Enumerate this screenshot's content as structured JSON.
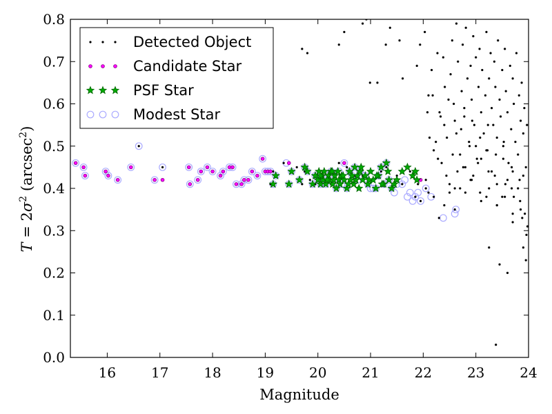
{
  "chart_data": {
    "type": "scatter",
    "title": "",
    "xlabel": "Magnitude",
    "ylabel": {
      "prefix": "T",
      "eq": " = 2",
      "sigma": "σ",
      "sup": "2",
      "units": " (arcsec",
      "units_sup": "2",
      "close": ")"
    },
    "xlim": [
      15.3,
      24
    ],
    "ylim": [
      0.0,
      0.8
    ],
    "xticks": [
      "16",
      "17",
      "18",
      "19",
      "20",
      "21",
      "22",
      "23",
      "24"
    ],
    "yticks": [
      "0.0",
      "0.1",
      "0.2",
      "0.3",
      "0.4",
      "0.5",
      "0.6",
      "0.7",
      "0.8"
    ],
    "grid": false,
    "legend_position": "top-left",
    "series": [
      {
        "name": "Detected Object",
        "marker": "dot",
        "color": "#000000",
        "x": [
          15.4,
          15.55,
          15.58,
          15.97,
          16.02,
          16.2,
          16.45,
          16.6,
          16.9,
          17.05,
          17.55,
          17.57,
          17.72,
          17.78,
          17.9,
          18.0,
          18.15,
          18.2,
          18.32,
          18.38,
          18.45,
          18.55,
          18.6,
          18.68,
          18.75,
          18.85,
          18.95,
          19.0,
          19.1,
          19.15,
          19.35,
          19.45,
          19.6,
          19.7,
          19.75,
          19.85,
          19.95,
          20.05,
          20.15,
          20.25,
          20.4,
          20.55,
          20.7,
          20.85,
          21.0,
          21.1,
          21.2,
          21.3,
          21.4,
          21.5,
          21.6,
          21.75,
          21.85,
          21.9,
          21.95,
          22.05,
          22.1,
          22.2,
          22.3,
          22.4,
          22.5,
          22.6,
          22.7,
          22.8,
          22.9,
          23.0,
          23.1,
          23.2,
          23.3,
          23.4,
          23.5,
          23.6,
          23.7,
          23.8,
          23.9,
          19.7,
          19.8,
          20.4,
          20.5,
          20.85,
          20.92,
          20.99,
          21.13,
          21.29,
          21.37,
          21.55,
          21.61,
          21.88,
          21.94,
          22.03,
          22.1,
          22.16,
          22.27,
          22.31,
          22.38,
          22.41,
          22.45,
          22.52,
          22.55,
          22.58,
          22.6,
          22.63,
          22.66,
          22.7,
          22.73,
          22.75,
          22.78,
          22.81,
          22.84,
          22.87,
          22.9,
          22.92,
          22.95,
          22.97,
          23.0,
          23.02,
          23.05,
          23.07,
          23.1,
          23.12,
          23.15,
          23.18,
          23.2,
          23.22,
          23.25,
          23.28,
          23.3,
          23.33,
          23.35,
          23.37,
          23.4,
          23.42,
          23.45,
          23.47,
          23.5,
          23.52,
          23.55,
          23.57,
          23.6,
          23.62,
          23.65,
          23.67,
          23.7,
          23.72,
          23.75,
          23.77,
          23.8,
          23.82,
          23.85,
          23.87,
          23.9,
          23.92,
          23.95,
          23.97,
          22.05,
          22.2,
          22.35,
          22.5,
          22.65,
          22.8,
          22.95,
          23.1,
          23.25,
          23.4,
          23.55,
          23.7,
          23.85,
          23.98,
          22.12,
          22.28,
          22.44,
          22.6,
          22.76,
          22.92,
          23.08,
          23.24,
          23.4,
          23.56,
          23.72,
          23.88,
          22.08,
          22.24,
          22.4,
          22.56,
          22.72,
          22.88,
          23.04,
          23.2,
          23.36,
          23.52,
          23.68,
          23.84,
          23.96,
          22.18,
          22.33,
          22.48,
          22.63,
          22.78,
          22.93,
          23.08,
          23.23,
          23.38,
          23.53,
          23.68,
          23.83,
          23.93,
          23.38,
          23.45,
          23.6,
          23.9,
          23.95,
          23.25,
          23.7
        ],
        "y": [
          0.46,
          0.45,
          0.43,
          0.44,
          0.43,
          0.42,
          0.45,
          0.5,
          0.42,
          0.45,
          0.45,
          0.41,
          0.42,
          0.44,
          0.45,
          0.44,
          0.43,
          0.44,
          0.45,
          0.45,
          0.41,
          0.41,
          0.42,
          0.42,
          0.44,
          0.43,
          0.47,
          0.44,
          0.41,
          0.44,
          0.46,
          0.41,
          0.45,
          0.41,
          0.44,
          0.42,
          0.41,
          0.43,
          0.42,
          0.41,
          0.46,
          0.45,
          0.43,
          0.43,
          0.42,
          0.4,
          0.44,
          0.45,
          0.4,
          0.43,
          0.41,
          0.44,
          0.38,
          0.41,
          0.37,
          0.4,
          0.39,
          0.38,
          0.33,
          0.36,
          0.39,
          0.35,
          0.4,
          0.45,
          0.42,
          0.5,
          0.47,
          0.38,
          0.44,
          0.41,
          0.38,
          0.42,
          0.44,
          0.4,
          0.43,
          0.73,
          0.72,
          0.74,
          0.77,
          0.79,
          0.8,
          0.65,
          0.65,
          0.74,
          0.78,
          0.75,
          0.66,
          0.69,
          0.74,
          0.77,
          0.62,
          0.68,
          0.72,
          0.58,
          0.71,
          0.64,
          0.52,
          0.67,
          0.75,
          0.6,
          0.56,
          0.79,
          0.7,
          0.48,
          0.63,
          0.74,
          0.57,
          0.78,
          0.66,
          0.51,
          0.69,
          0.61,
          0.76,
          0.55,
          0.71,
          0.47,
          0.64,
          0.73,
          0.58,
          0.68,
          0.53,
          0.62,
          0.77,
          0.49,
          0.66,
          0.72,
          0.59,
          0.55,
          0.7,
          0.64,
          0.52,
          0.75,
          0.61,
          0.57,
          0.68,
          0.5,
          0.73,
          0.63,
          0.58,
          0.46,
          0.69,
          0.54,
          0.66,
          0.6,
          0.51,
          0.72,
          0.48,
          0.62,
          0.56,
          0.65,
          0.53,
          0.59,
          0.45,
          0.55,
          0.42,
          0.49,
          0.46,
          0.41,
          0.44,
          0.39,
          0.43,
          0.37,
          0.4,
          0.36,
          0.38,
          0.34,
          0.35,
          0.31,
          0.52,
          0.47,
          0.43,
          0.4,
          0.45,
          0.42,
          0.39,
          0.44,
          0.36,
          0.41,
          0.38,
          0.33,
          0.58,
          0.51,
          0.55,
          0.48,
          0.54,
          0.5,
          0.46,
          0.49,
          0.43,
          0.47,
          0.4,
          0.37,
          0.29,
          0.62,
          0.57,
          0.61,
          0.53,
          0.59,
          0.56,
          0.52,
          0.55,
          0.48,
          0.51,
          0.45,
          0.42,
          0.34,
          0.03,
          0.22,
          0.2,
          0.26,
          0.23,
          0.26,
          0.32
        ],
        "note": ""
      },
      {
        "name": "Candidate Star",
        "marker": "circle-small",
        "color": "#ff00ff",
        "x": [
          15.4,
          15.55,
          15.58,
          15.97,
          16.02,
          16.2,
          16.45,
          16.9,
          17.05,
          17.55,
          17.57,
          17.72,
          17.78,
          17.9,
          18.0,
          18.15,
          18.2,
          18.32,
          18.38,
          18.45,
          18.55,
          18.6,
          18.68,
          18.75,
          18.85,
          18.95,
          19.0,
          19.05,
          19.1,
          19.45,
          20.5,
          21.95
        ],
        "y": [
          0.46,
          0.45,
          0.43,
          0.44,
          0.43,
          0.42,
          0.45,
          0.42,
          0.42,
          0.45,
          0.41,
          0.42,
          0.44,
          0.45,
          0.44,
          0.43,
          0.44,
          0.45,
          0.45,
          0.41,
          0.41,
          0.42,
          0.42,
          0.44,
          0.43,
          0.47,
          0.44,
          0.44,
          0.44,
          0.46,
          0.46,
          0.42
        ]
      },
      {
        "name": "PSF Star",
        "marker": "star",
        "color": "#00aa00",
        "x": [
          19.15,
          19.2,
          19.45,
          19.5,
          19.65,
          19.75,
          19.8,
          19.9,
          19.95,
          20.0,
          20.02,
          20.05,
          20.08,
          20.1,
          20.12,
          20.15,
          20.2,
          20.22,
          20.25,
          20.28,
          20.3,
          20.32,
          20.35,
          20.38,
          20.4,
          20.42,
          20.45,
          20.5,
          20.55,
          20.6,
          20.62,
          20.65,
          20.68,
          20.7,
          20.72,
          20.75,
          20.78,
          20.8,
          20.85,
          20.9,
          20.95,
          21.0,
          21.05,
          21.1,
          21.15,
          21.2,
          21.25,
          21.3,
          21.35,
          21.4,
          21.45,
          21.5,
          21.6,
          21.7,
          21.8,
          21.85,
          21.88,
          20.05,
          20.18,
          20.27,
          20.48,
          20.58,
          20.82,
          20.97,
          21.12,
          21.22,
          21.33
        ],
        "y": [
          0.41,
          0.43,
          0.41,
          0.44,
          0.42,
          0.45,
          0.44,
          0.41,
          0.43,
          0.42,
          0.44,
          0.41,
          0.43,
          0.42,
          0.44,
          0.41,
          0.43,
          0.42,
          0.44,
          0.41,
          0.42,
          0.43,
          0.4,
          0.44,
          0.42,
          0.41,
          0.43,
          0.42,
          0.4,
          0.44,
          0.42,
          0.43,
          0.41,
          0.45,
          0.42,
          0.43,
          0.4,
          0.44,
          0.42,
          0.43,
          0.41,
          0.44,
          0.42,
          0.4,
          0.43,
          0.45,
          0.41,
          0.46,
          0.42,
          0.4,
          0.41,
          0.42,
          0.44,
          0.45,
          0.43,
          0.44,
          0.42,
          0.43,
          0.42,
          0.44,
          0.43,
          0.41,
          0.45,
          0.42,
          0.43,
          0.41,
          0.44
        ]
      },
      {
        "name": "Modest Star",
        "marker": "circle-open",
        "color": "#aaaaff",
        "x": [
          15.4,
          15.55,
          15.58,
          15.97,
          16.02,
          16.2,
          16.45,
          16.6,
          16.9,
          17.05,
          17.55,
          17.57,
          17.72,
          17.78,
          17.9,
          18.0,
          18.15,
          18.2,
          18.32,
          18.38,
          18.45,
          18.55,
          18.6,
          18.68,
          18.75,
          18.85,
          18.95,
          19.0,
          19.05,
          19.1,
          19.15,
          19.2,
          19.4,
          19.45,
          19.5,
          19.65,
          19.75,
          19.8,
          19.9,
          19.95,
          20.0,
          20.05,
          20.1,
          20.15,
          20.2,
          20.25,
          20.3,
          20.35,
          20.4,
          20.45,
          20.5,
          20.55,
          20.6,
          20.65,
          20.7,
          20.75,
          20.8,
          20.85,
          20.9,
          20.95,
          21.0,
          21.05,
          21.1,
          21.15,
          21.2,
          21.25,
          21.3,
          21.35,
          21.4,
          21.45,
          21.5,
          21.6,
          21.65,
          21.7,
          21.75,
          21.8,
          21.85,
          21.9,
          21.95,
          22.05,
          22.15,
          22.38,
          22.6,
          22.62
        ],
        "y": [
          0.46,
          0.45,
          0.43,
          0.44,
          0.43,
          0.42,
          0.45,
          0.5,
          0.42,
          0.45,
          0.45,
          0.41,
          0.42,
          0.44,
          0.45,
          0.44,
          0.43,
          0.44,
          0.45,
          0.45,
          0.41,
          0.41,
          0.42,
          0.42,
          0.44,
          0.43,
          0.47,
          0.44,
          0.44,
          0.44,
          0.41,
          0.43,
          0.46,
          0.41,
          0.44,
          0.42,
          0.45,
          0.44,
          0.41,
          0.43,
          0.42,
          0.41,
          0.42,
          0.41,
          0.43,
          0.44,
          0.42,
          0.4,
          0.44,
          0.41,
          0.46,
          0.4,
          0.44,
          0.43,
          0.45,
          0.42,
          0.44,
          0.43,
          0.43,
          0.41,
          0.4,
          0.4,
          0.4,
          0.43,
          0.45,
          0.41,
          0.46,
          0.42,
          0.4,
          0.39,
          0.41,
          0.41,
          0.42,
          0.38,
          0.39,
          0.37,
          0.38,
          0.39,
          0.37,
          0.4,
          0.38,
          0.33,
          0.34,
          0.35
        ]
      }
    ]
  }
}
